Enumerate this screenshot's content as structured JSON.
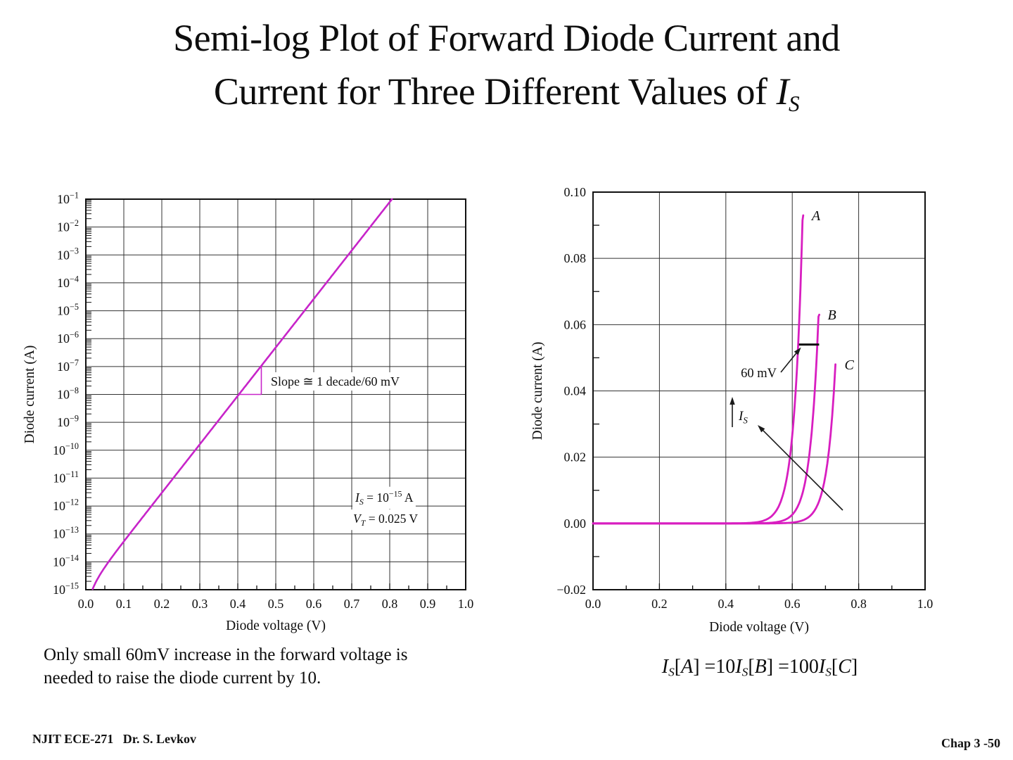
{
  "slide": {
    "title_line1": "Semi-log Plot of Forward Diode Current and",
    "title_line2_prefix": "Current for Three Different Values of ",
    "title_line2_symbol": "I",
    "title_line2_subscript": "S",
    "note_line1": "Only small 60mV increase in the forward voltage is",
    "note_line2": "needed to raise the diode current by 10.",
    "footer_left": "NJIT ECE-271   Dr. S. Levkov",
    "footer_right": "Chap 3 -50"
  },
  "formula": {
    "tokens": [
      {
        "text": "I",
        "style": "italic"
      },
      {
        "text": "S",
        "style": "sub"
      },
      {
        "text": "[",
        "style": "plain"
      },
      {
        "text": "A",
        "style": "italic"
      },
      {
        "text": "] =10",
        "style": "plain"
      },
      {
        "text": "I",
        "style": "italic"
      },
      {
        "text": "S",
        "style": "sub"
      },
      {
        "text": "[",
        "style": "plain"
      },
      {
        "text": "B",
        "style": "italic"
      },
      {
        "text": "] =100",
        "style": "plain"
      },
      {
        "text": "I",
        "style": "italic"
      },
      {
        "text": "S",
        "style": "sub"
      },
      {
        "text": "[",
        "style": "plain"
      },
      {
        "text": "C",
        "style": "italic"
      },
      {
        "text": "]",
        "style": "plain"
      }
    ]
  },
  "chart_data": [
    {
      "id": "semilog-diode-iv",
      "type": "line",
      "x_axis": {
        "label": "Diode voltage (V)",
        "min": 0,
        "max": 1,
        "major_tick_step": 0.1,
        "minor_tick_step": 0.05,
        "tick_labels": [
          "0.0",
          "0.1",
          "0.2",
          "0.3",
          "0.4",
          "0.5",
          "0.6",
          "0.7",
          "0.8",
          "0.9",
          "1.0"
        ]
      },
      "y_axis": {
        "label": "Diode current (A)",
        "scale": "log",
        "tick_label_base": "10",
        "tick_exponents": [
          -1,
          -2,
          -3,
          -4,
          -5,
          -6,
          -7,
          -8,
          -9,
          -10,
          -11,
          -12,
          -13,
          -14,
          -15
        ]
      },
      "series": [
        {
          "name": "forward-diode-current",
          "color": "#c724c9",
          "model": {
            "is_a": 1e-15,
            "vt_v": 0.025
          },
          "points_v_log10i": [
            [
              0.017,
              -15
            ],
            [
              0.05,
              -14.19
            ],
            [
              0.1,
              -13.27
            ],
            [
              0.15,
              -12.4
            ],
            [
              0.2,
              -11.53
            ],
            [
              0.25,
              -10.66
            ],
            [
              0.3,
              -9.79
            ],
            [
              0.35,
              -8.92
            ],
            [
              0.4,
              -8.05
            ],
            [
              0.45,
              -7.18
            ],
            [
              0.5,
              -6.31
            ],
            [
              0.55,
              -5.44
            ],
            [
              0.6,
              -4.58
            ],
            [
              0.65,
              -3.71
            ],
            [
              0.7,
              -2.84
            ],
            [
              0.75,
              -1.97
            ],
            [
              0.81,
              -1.0
            ]
          ]
        }
      ],
      "slope_triangle": {
        "v1": 0.403,
        "v2": 0.462,
        "exp_base": -8,
        "exp_top": -7
      },
      "annotations": {
        "slope_label": "Slope ≅ 1 decade/60 mV",
        "is_tokens": [
          {
            "text": "I",
            "style": "italic"
          },
          {
            "text": "S",
            "style": "sub"
          },
          {
            "text": " = 10",
            "style": "plain"
          },
          {
            "text": "−15",
            "style": "sup"
          },
          {
            "text": " A",
            "style": "plain"
          }
        ],
        "vt_tokens": [
          {
            "text": "V",
            "style": "italic"
          },
          {
            "text": "T",
            "style": "sub"
          },
          {
            "text": " = 0.025 V",
            "style": "plain"
          }
        ]
      }
    },
    {
      "id": "linear-diode-iv-three-is",
      "type": "line",
      "x_axis": {
        "label": "Diode voltage (V)",
        "min": 0,
        "max": 1,
        "major_tick_step": 0.2,
        "minor_tick_step": 0.1,
        "tick_labels": [
          "0.0",
          "0.2",
          "0.4",
          "0.6",
          "0.8",
          "1.0"
        ]
      },
      "y_axis": {
        "label": "Diode current (A)",
        "min": -0.02,
        "max": 0.1,
        "major_tick_step": 0.02,
        "minor_tick_step": 0.01,
        "tick_labels": [
          "0.10",
          "0.08",
          "0.06",
          "0.04",
          "0.02",
          "0.00",
          "−0.02"
        ]
      },
      "thermal_voltage_v": 0.025,
      "series": [
        {
          "name": "curve-A",
          "label": "A",
          "color": "#d81ec0",
          "is_a": 1e-12,
          "v_end": 0.631,
          "i_end": 0.093,
          "points": [
            [
              0,
              0
            ],
            [
              0.45,
              6.6e-05
            ],
            [
              0.5,
              0.00049
            ],
            [
              0.55,
              0.0036
            ],
            [
              0.58,
              0.0118
            ],
            [
              0.6,
              0.0265
            ],
            [
              0.61,
              0.0395
            ],
            [
              0.62,
              0.0589
            ],
            [
              0.631,
              0.093
            ]
          ]
        },
        {
          "name": "curve-B",
          "label": "B",
          "color": "#d81ec0",
          "is_a": 1e-13,
          "v_end": 0.679,
          "i_end": 0.063,
          "points": [
            [
              0,
              0
            ],
            [
              0.5,
              4.9e-05
            ],
            [
              0.55,
              0.00036
            ],
            [
              0.6,
              0.00265
            ],
            [
              0.63,
              0.0088
            ],
            [
              0.65,
              0.0196
            ],
            [
              0.66,
              0.0292
            ],
            [
              0.67,
              0.0435
            ],
            [
              0.679,
              0.063
            ]
          ]
        },
        {
          "name": "curve-C",
          "label": "C",
          "color": "#d81ec0",
          "is_a": 1e-14,
          "v_end": 0.73,
          "i_end": 0.048,
          "points": [
            [
              0,
              0
            ],
            [
              0.55,
              3.6e-05
            ],
            [
              0.6,
              0.000265
            ],
            [
              0.65,
              0.00195
            ],
            [
              0.68,
              0.0065
            ],
            [
              0.7,
              0.0145
            ],
            [
              0.71,
              0.0215
            ],
            [
              0.72,
              0.0321
            ],
            [
              0.73,
              0.048
            ]
          ]
        }
      ],
      "annotations": {
        "bar": {
          "label": "60 mV",
          "i": 0.054,
          "v1": 0.62,
          "v2": 0.681
        },
        "is_arrow_tokens": [
          {
            "text": "I",
            "style": "italic"
          },
          {
            "text": "S",
            "style": "sub"
          }
        ]
      }
    }
  ]
}
